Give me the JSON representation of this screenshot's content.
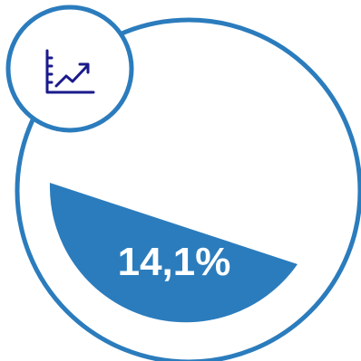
{
  "gauge": {
    "value_label": "14,1%",
    "fill_fraction": 0.141,
    "icon": "line-chart-trend-up-icon"
  },
  "colors": {
    "accent": "#2b7cbd",
    "icon_stroke": "#1a1a8c",
    "background": "#ffffff"
  }
}
